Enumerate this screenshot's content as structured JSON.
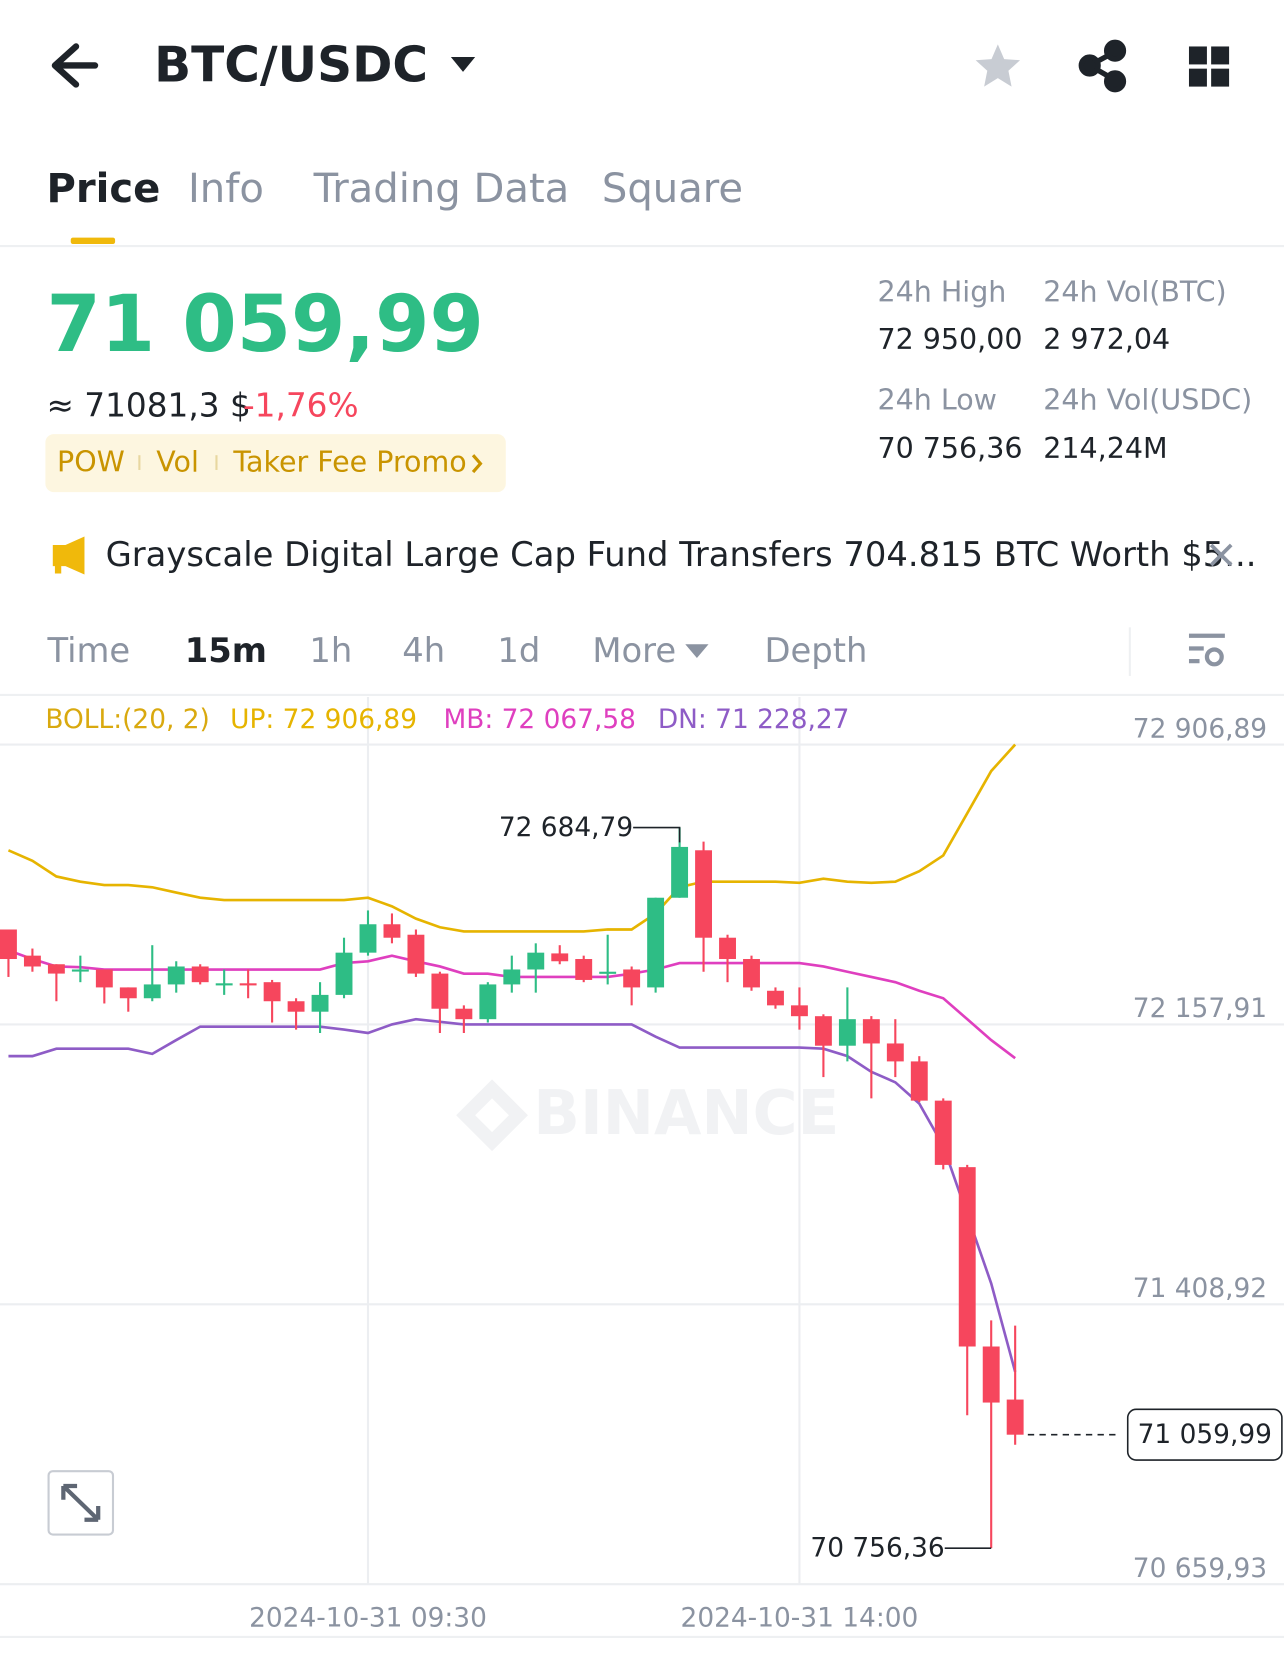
{
  "header": {
    "title": "BTC/USDC"
  },
  "tabs": [
    "Price",
    "Info",
    "Trading Data",
    "Square"
  ],
  "price": {
    "last": "71 059,99",
    "approx": "≈ 71081,3 $",
    "change": "-1,76%"
  },
  "tags": [
    "POW",
    "Vol",
    "Taker Fee Promo"
  ],
  "stats": [
    {
      "label": "24h High",
      "value": "72 950,00"
    },
    {
      "label": "24h Vol(BTC)",
      "value": "2 972,04"
    },
    {
      "label": "24h Low",
      "value": "70 756,36"
    },
    {
      "label": "24h Vol(USDC)",
      "value": "214,24M"
    }
  ],
  "news": "Grayscale Digital Large Cap Fund Transfers 704.815 BTC Worth $5...",
  "intervals": [
    "Time",
    "15m",
    "1h",
    "4h",
    "1d",
    "More",
    "Depth"
  ],
  "chart_data": {
    "type": "candlestick",
    "watermark": "BINANCE",
    "categories": [
      null,
      null,
      null,
      null,
      null,
      null,
      null,
      null,
      null,
      null,
      null,
      null,
      null,
      null,
      null,
      "2024-10-31 09:30",
      null,
      null,
      null,
      null,
      null,
      null,
      null,
      null,
      null,
      null,
      null,
      null,
      null,
      null,
      null,
      null,
      null,
      "2024-10-31 14:00",
      null,
      null,
      null,
      null,
      null,
      null,
      null,
      null,
      null
    ],
    "open": [
      72412,
      72342,
      72319,
      72302,
      72305,
      72257,
      72228,
      72265,
      72313,
      72265,
      72268,
      72271,
      72220,
      72192,
      72237,
      72350,
      72426,
      72398,
      72294,
      72200,
      72172,
      72265,
      72305,
      72348,
      72333,
      72296,
      72305,
      72257,
      72497,
      72624,
      72390,
      72333,
      72248,
      72209,
      72180,
      72101,
      72172,
      72107,
      72059,
      71954,
      71776,
      71296,
      71154
    ],
    "high": [
      72412,
      72361,
      72319,
      72342,
      72305,
      72257,
      72370,
      72327,
      72319,
      72305,
      72305,
      72277,
      72228,
      72271,
      72390,
      72463,
      72455,
      72412,
      72299,
      72209,
      72271,
      72342,
      72375,
      72370,
      72342,
      72398,
      72313,
      72497,
      72684.79,
      72647,
      72398,
      72342,
      72257,
      72257,
      72185,
      72257,
      72180,
      72172,
      72073,
      71960,
      71782,
      71366,
      71352
    ],
    "low": [
      72285,
      72299,
      72220,
      72271,
      72214,
      72192,
      72220,
      72243,
      72265,
      72237,
      72228,
      72163,
      72144,
      72135,
      72228,
      72342,
      72375,
      72285,
      72135,
      72135,
      72163,
      72243,
      72243,
      72319,
      72271,
      72265,
      72209,
      72243,
      72497,
      72299,
      72271,
      72248,
      72200,
      72144,
      72017,
      72059,
      71960,
      72017,
      71950,
      71770,
      71112,
      70756.36,
      71033
    ],
    "close": [
      72333,
      72313,
      72294,
      72305,
      72257,
      72228,
      72265,
      72313,
      72271,
      72268,
      72265,
      72220,
      72192,
      72237,
      72350,
      72426,
      72390,
      72294,
      72200,
      72172,
      72265,
      72305,
      72350,
      72327,
      72277,
      72299,
      72257,
      72497,
      72633,
      72390,
      72333,
      72257,
      72209,
      72180,
      72101,
      72172,
      72107,
      72059,
      71954,
      71782,
      71296,
      71146,
      71059.99
    ],
    "up_color": "#2ebd85",
    "down_color": "#f6465d",
    "indicator": {
      "label": "BOLL:(20, 2)",
      "color": "#d9a90f",
      "series": [
        {
          "name": "UP: 72 906,89",
          "color": "#e6b400",
          "values": [
            72624,
            72596,
            72554,
            72540,
            72531,
            72531,
            72525,
            72511,
            72497,
            72491,
            72491,
            72491,
            72491,
            72491,
            72491,
            72497,
            72474,
            72441,
            72418,
            72407,
            72407,
            72407,
            72407,
            72407,
            72407,
            72412,
            72412,
            72455,
            72525,
            72540,
            72540,
            72540,
            72540,
            72537,
            72548,
            72540,
            72537,
            72540,
            72568,
            72610,
            72723,
            72836,
            72906.89
          ]
        },
        {
          "name": "MB: 72 067,58",
          "color": "#df3fbf",
          "values": [
            72356,
            72333,
            72313,
            72311,
            72305,
            72305,
            72305,
            72305,
            72305,
            72305,
            72305,
            72305,
            72305,
            72305,
            72322,
            72327,
            72342,
            72327,
            72313,
            72294,
            72294,
            72285,
            72285,
            72285,
            72285,
            72285,
            72294,
            72305,
            72322,
            72322,
            72322,
            72322,
            72322,
            72322,
            72313,
            72299,
            72285,
            72271,
            72248,
            72228,
            72172,
            72116,
            72067.58
          ]
        },
        {
          "name": "DN: 71 228,27",
          "color": "#8e5cc6",
          "values": [
            72073,
            72073,
            72093,
            72093,
            72093,
            72093,
            72079,
            72116,
            72152,
            72152,
            72152,
            72152,
            72152,
            72152,
            72144,
            72135,
            72158,
            72172,
            72165,
            72158,
            72158,
            72158,
            72158,
            72158,
            72158,
            72158,
            72158,
            72125,
            72096,
            72096,
            72096,
            72096,
            72096,
            72096,
            72093,
            72073,
            72031,
            72003,
            71946,
            71833,
            71649,
            71465,
            71228.27
          ]
        }
      ]
    },
    "max_label": {
      "value": 72684.79,
      "label": "72 684,79"
    },
    "min_label": {
      "value": 70756.36,
      "label": "70 756,36"
    },
    "current_price": {
      "value": 71059.99,
      "label": "71 059,99"
    },
    "ylim": [
      70659.93,
      73034.09
    ],
    "yticks": [
      {
        "value": 70659.93,
        "label": "70 659,93"
      },
      {
        "value": 71408.92,
        "label": "71 408,92"
      },
      {
        "value": 72157.91,
        "label": "72 157,91"
      },
      {
        "value": 72906.89,
        "label": "72 906,89"
      }
    ],
    "grid": true
  }
}
